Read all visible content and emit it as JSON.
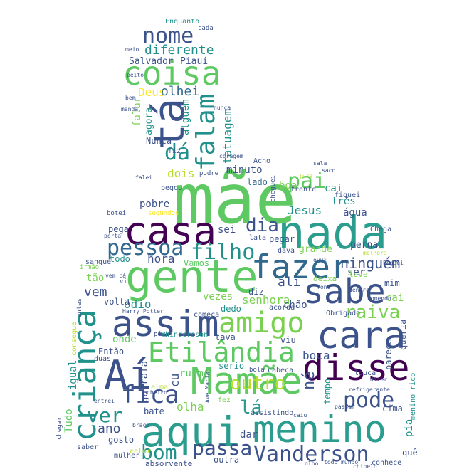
{
  "palette": {
    "dark_purple": "#440154",
    "indigo": "#3b528b",
    "blue": "#31688e",
    "teal": "#21918c",
    "sea_green": "#2a9d8f",
    "green": "#5ec962",
    "lime": "#7ad151",
    "yellow_green": "#b5de2b",
    "yellow": "#fde725"
  },
  "words": [
    {
      "text": "mãe",
      "color": "#5ec962"
    },
    {
      "text": "casa",
      "color": "#440154"
    },
    {
      "text": "nada",
      "color": "#2a9d8f"
    },
    {
      "text": "gente",
      "color": "#5ec962"
    },
    {
      "text": "aqui",
      "color": "#2a9d8f"
    },
    {
      "text": "menino",
      "color": "#2a9d8f"
    },
    {
      "text": "Mamãe",
      "color": "#5ec962"
    },
    {
      "text": "assim",
      "color": "#3b528b"
    },
    {
      "text": "cara",
      "color": "#3b528b"
    },
    {
      "text": "disse",
      "color": "#440154"
    },
    {
      "text": "sabe",
      "color": "#3b528b"
    },
    {
      "text": "fazer",
      "color": "#31688e"
    },
    {
      "text": "Aí",
      "color": "#3b528b"
    },
    {
      "text": "coisa",
      "color": "#5ec962"
    },
    {
      "text": "tá",
      "color": "#3b528b"
    },
    {
      "text": "criança",
      "color": "#21918c"
    },
    {
      "text": "Etilândia",
      "color": "#5ec962"
    },
    {
      "text": "amigo",
      "color": "#7ad151"
    },
    {
      "text": "pessoa",
      "color": "#31688e"
    },
    {
      "text": "filho",
      "color": "#21918c"
    },
    {
      "text": "Vanderson",
      "color": "#3b528b"
    },
    {
      "text": "falam",
      "color": "#21918c"
    },
    {
      "text": "nome",
      "color": "#3b528b"
    },
    {
      "text": "fica",
      "color": "#3b528b"
    },
    {
      "text": "pode",
      "color": "#3b528b"
    },
    {
      "text": "dá",
      "color": "#21918c"
    },
    {
      "text": "pai",
      "color": "#5ec962"
    },
    {
      "text": "raiva",
      "color": "#7ad151"
    },
    {
      "text": "bom",
      "color": "#21918c"
    },
    {
      "text": "passa",
      "color": "#3b528b"
    },
    {
      "text": "outro",
      "color": "#b5de2b"
    },
    {
      "text": "ver",
      "color": "#21918c"
    },
    {
      "text": "lá",
      "color": "#2a9d8f"
    },
    {
      "text": "dia",
      "color": "#3b528b"
    },
    {
      "text": "diferente",
      "color": "#21918c"
    },
    {
      "text": "olhei",
      "color": "#31688e"
    },
    {
      "text": "Deus",
      "color": "#fde725"
    },
    {
      "text": "ninguém",
      "color": "#3b528b"
    },
    {
      "text": "tatuagem",
      "color": "#21918c"
    },
    {
      "text": "alguém",
      "color": "#21918c"
    },
    {
      "text": "falar",
      "color": "#7ad151"
    },
    {
      "text": "agora",
      "color": "#21918c"
    },
    {
      "text": "Salvador",
      "color": "#3b528b"
    },
    {
      "text": "Piauí",
      "color": "#3b528b"
    },
    {
      "text": "Enquanto",
      "color": "#21918c"
    },
    {
      "text": "Nunca",
      "color": "#3b528b"
    },
    {
      "text": "fiz",
      "color": "#3b528b"
    },
    {
      "text": "dois",
      "color": "#b5de2b"
    },
    {
      "text": "minuto",
      "color": "#3b528b"
    },
    {
      "text": "lado",
      "color": "#31688e"
    },
    {
      "text": "boa",
      "color": "#7ad151"
    },
    {
      "text": "cai",
      "color": "#21918c"
    },
    {
      "text": "três",
      "color": "#21918c"
    },
    {
      "text": "água",
      "color": "#3b528b"
    },
    {
      "text": "Jesus",
      "color": "#21918c"
    },
    {
      "text": "pobre",
      "color": "#3b528b"
    },
    {
      "text": "sei",
      "color": "#3b528b"
    },
    {
      "text": "pega",
      "color": "#3b528b"
    },
    {
      "text": "pegar",
      "color": "#3b528b"
    },
    {
      "text": "perna",
      "color": "#3b528b"
    },
    {
      "text": "grande",
      "color": "#7ad151"
    },
    {
      "text": "hora",
      "color": "#3b528b"
    },
    {
      "text": "todo",
      "color": "#21918c"
    },
    {
      "text": "Vamos",
      "color": "#5ec962"
    },
    {
      "text": "tão",
      "color": "#7ad151"
    },
    {
      "text": "vem",
      "color": "#3b528b"
    },
    {
      "text": "ali",
      "color": "#3b528b"
    },
    {
      "text": "vezes",
      "color": "#7ad151"
    },
    {
      "text": "diz",
      "color": "#3b528b"
    },
    {
      "text": "senhora",
      "color": "#7ad151"
    },
    {
      "text": "ser",
      "color": "#3b528b"
    },
    {
      "text": "mim",
      "color": "#3b528b"
    },
    {
      "text": "ódio",
      "color": "#21918c"
    },
    {
      "text": "onde",
      "color": "#5ec962"
    },
    {
      "text": "volta",
      "color": "#3b528b"
    },
    {
      "text": "dedo",
      "color": "#21918c"
    },
    {
      "text": "chão",
      "color": "#3b528b"
    },
    {
      "text": "acorda",
      "color": "#3b528b"
    },
    {
      "text": "cai",
      "color": "#7ad151"
    },
    {
      "text": "igual",
      "color": "#21918c"
    },
    {
      "text": "Então",
      "color": "#3b528b"
    },
    {
      "text": "tava",
      "color": "#3b528b"
    },
    {
      "text": "viu",
      "color": "#3b528b"
    },
    {
      "text": "boca",
      "color": "#3b528b"
    },
    {
      "text": "queria",
      "color": "#3b528b"
    },
    {
      "text": "garrafa",
      "color": "#3b528b"
    },
    {
      "text": "ruim",
      "color": "#5ec962"
    },
    {
      "text": "sério",
      "color": "#21918c"
    },
    {
      "text": "parece",
      "color": "#3b528b"
    },
    {
      "text": "né",
      "color": "#3b528b"
    },
    {
      "text": "tempo",
      "color": "#21918c"
    },
    {
      "text": "cu",
      "color": "#3b528b"
    },
    {
      "text": "ano",
      "color": "#3b528b"
    },
    {
      "text": "olha",
      "color": "#7ad151"
    },
    {
      "text": "bate",
      "color": "#3b528b"
    },
    {
      "text": "Tudo",
      "color": "#5ec962"
    },
    {
      "text": "assistindo",
      "color": "#3b528b"
    },
    {
      "text": "cima",
      "color": "#3b528b"
    },
    {
      "text": "dar",
      "color": "#3b528b"
    },
    {
      "text": "gosto",
      "color": "#3b528b"
    },
    {
      "text": "outra",
      "color": "#3b528b"
    },
    {
      "text": "quê",
      "color": "#3b528b"
    },
    {
      "text": "absorvente",
      "color": "#3b528b"
    },
    {
      "text": "mulher",
      "color": "#3b528b"
    },
    {
      "text": "conhece",
      "color": "#3b528b"
    },
    {
      "text": "pia",
      "color": "#21918c"
    },
    {
      "text": "menino rico",
      "color": "#21918c"
    },
    {
      "text": "Chega",
      "color": "#3b528b"
    },
    {
      "text": "leve",
      "color": "#7ad151"
    },
    {
      "text": "deixa",
      "color": "#7ad151"
    },
    {
      "text": "Acho",
      "color": "#3b528b"
    },
    {
      "text": "podre",
      "color": "#3b528b"
    },
    {
      "text": "botei",
      "color": "#3b528b"
    },
    {
      "text": "pegou",
      "color": "#3b528b"
    },
    {
      "text": "frente",
      "color": "#3b528b"
    },
    {
      "text": "sangue",
      "color": "#3b528b"
    },
    {
      "text": "dava",
      "color": "#3b528b"
    },
    {
      "text": "lata",
      "color": "#3b528b"
    },
    {
      "text": "cada",
      "color": "#3b528b"
    },
    {
      "text": "fiquei",
      "color": "#3b528b"
    },
    {
      "text": "Obrigado",
      "color": "#3b528b"
    },
    {
      "text": "louca",
      "color": "#3b528b"
    },
    {
      "text": "cabeça",
      "color": "#3b528b"
    },
    {
      "text": "alma",
      "color": "#b5de2b"
    },
    {
      "text": "duas",
      "color": "#3b528b"
    },
    {
      "text": "antes",
      "color": "#3b528b"
    },
    {
      "text": "Harry Potter",
      "color": "#3b528b"
    },
    {
      "text": "Whindersson",
      "color": "#21918c"
    },
    {
      "text": "consegue",
      "color": "#b5de2b"
    },
    {
      "text": "começa",
      "color": "#3b528b"
    },
    {
      "text": "irmão",
      "color": "#7ad151"
    },
    {
      "text": "chegar",
      "color": "#3b528b"
    },
    {
      "text": "calor",
      "color": "#b5de2b"
    },
    {
      "text": "saber",
      "color": "#3b528b"
    },
    {
      "text": "comendo",
      "color": "#3b528b"
    },
    {
      "text": "refrigerante",
      "color": "#3b528b"
    },
    {
      "text": "cheguei",
      "color": "#3b528b"
    },
    {
      "text": "bola",
      "color": "#3b528b"
    },
    {
      "text": "segundos",
      "color": "#fde725"
    },
    {
      "text": "fez",
      "color": "#7ad151"
    },
    {
      "text": "Ave Maria",
      "color": "#3b528b"
    },
    {
      "text": "todo mundo",
      "color": "#3b528b"
    },
    {
      "text": "olho",
      "color": "#3b528b"
    },
    {
      "text": "chinelo",
      "color": "#3b528b"
    },
    {
      "text": "vi",
      "color": "#3b528b"
    },
    {
      "text": "fone",
      "color": "#3b528b"
    },
    {
      "text": "Peguei",
      "color": "#3b528b"
    },
    {
      "text": "dentro",
      "color": "#3b528b"
    },
    {
      "text": "saco",
      "color": "#3b528b"
    },
    {
      "text": "ouvi",
      "color": "#3b528b"
    },
    {
      "text": "porta",
      "color": "#3b528b"
    },
    {
      "text": "vem cá",
      "color": "#3b528b"
    },
    {
      "text": "melhora",
      "color": "#b5de2b"
    },
    {
      "text": "pé",
      "color": "#3b528b"
    },
    {
      "text": "dizer",
      "color": "#3b528b"
    },
    {
      "text": "caiu",
      "color": "#3b528b"
    },
    {
      "text": "entrei",
      "color": "#3b528b"
    },
    {
      "text": "cheiro",
      "color": "#3b528b"
    },
    {
      "text": "passar",
      "color": "#3b528b"
    },
    {
      "text": "braço",
      "color": "#3b528b"
    },
    {
      "text": "bem",
      "color": "#3b528b"
    },
    {
      "text": "nunca",
      "color": "#3b528b"
    },
    {
      "text": "coragem",
      "color": "#3b528b"
    },
    {
      "text": "manda",
      "color": "#3b528b"
    },
    {
      "text": "peito",
      "color": "#3b528b"
    },
    {
      "text": "meio",
      "color": "#3b528b"
    },
    {
      "text": "jura",
      "color": "#b5de2b"
    },
    {
      "text": "falei",
      "color": "#3b528b"
    },
    {
      "text": "sala",
      "color": "#3b528b"
    }
  ]
}
